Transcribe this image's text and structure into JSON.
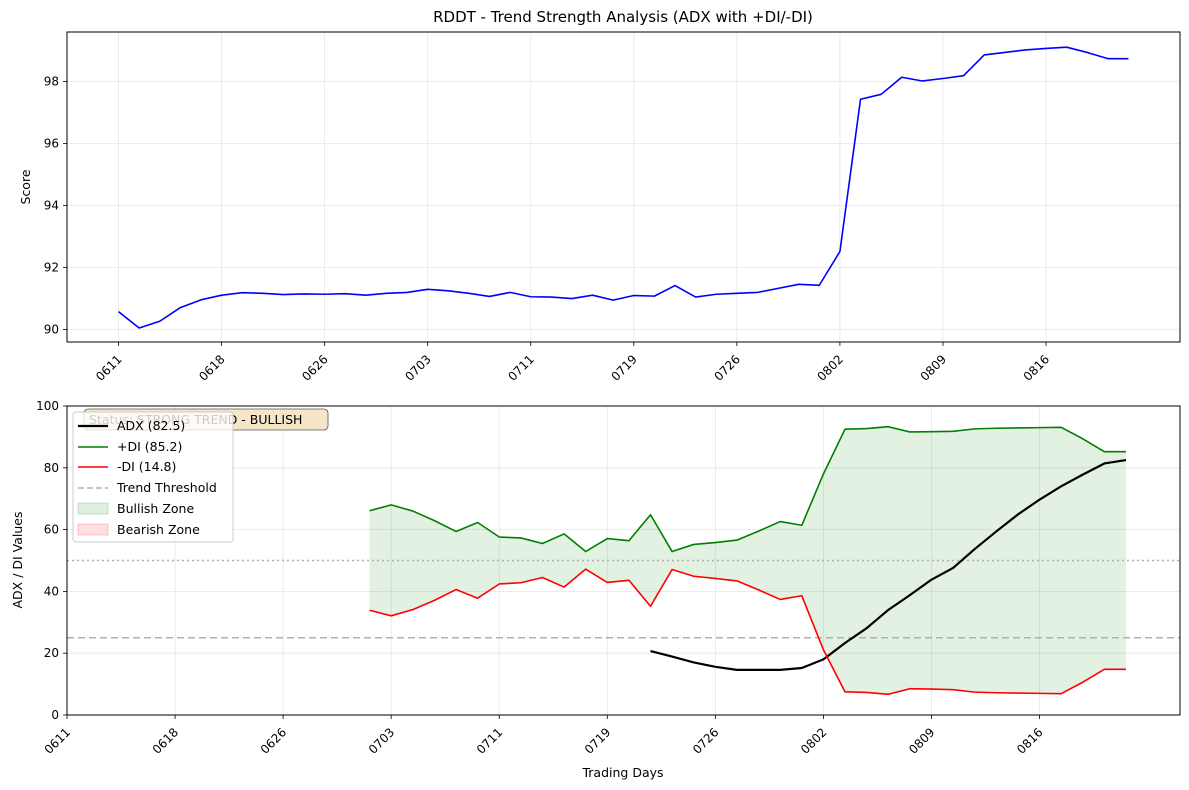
{
  "chart_data": [
    {
      "type": "line",
      "title": "RDDT - Trend Strength Analysis (ADX with +DI/-DI)",
      "xlabel": "",
      "ylabel": "Score",
      "ylim": [
        89.6,
        99.6
      ],
      "yticks": [
        90,
        92,
        94,
        96,
        98
      ],
      "xtick_labels": [
        "0611",
        "0618",
        "0626",
        "0703",
        "0711",
        "0719",
        "0726",
        "0802",
        "0809",
        "0816"
      ],
      "xtick_positions": [
        0,
        5,
        10,
        15,
        20,
        25,
        30,
        35,
        40,
        45
      ],
      "xlim": [
        -2.5,
        51.5
      ],
      "grid": true,
      "series": [
        {
          "color": "#0000ff",
          "x": [
            0,
            1,
            2,
            3,
            4,
            5,
            6,
            7,
            8,
            9,
            10,
            11,
            12,
            13,
            14,
            15,
            16,
            17,
            18,
            19,
            20,
            21,
            22,
            23,
            24,
            25,
            26,
            27,
            28,
            29,
            30,
            31,
            32,
            33,
            34,
            35,
            36,
            37,
            38,
            39,
            40,
            41,
            42,
            43,
            44,
            45,
            46,
            47,
            48,
            49
          ],
          "values": [
            90.58,
            90.05,
            90.27,
            90.71,
            90.96,
            91.11,
            91.19,
            91.17,
            91.13,
            91.15,
            91.14,
            91.16,
            91.11,
            91.17,
            91.2,
            91.3,
            91.25,
            91.17,
            91.07,
            91.2,
            91.06,
            91.05,
            91.0,
            91.11,
            90.95,
            91.1,
            91.08,
            91.42,
            91.05,
            91.14,
            91.17,
            91.2,
            91.33,
            91.46,
            91.43,
            92.52,
            97.43,
            97.59,
            98.14,
            98.02,
            98.1,
            98.19,
            98.86,
            98.94,
            99.02,
            99.07,
            99.11,
            98.94,
            98.74,
            98.74
          ]
        }
      ]
    },
    {
      "type": "line",
      "title": "",
      "xlabel": "Trading Days",
      "ylabel": "ADX / DI Values",
      "ylim": [
        0,
        100
      ],
      "yticks": [
        0,
        20,
        40,
        60,
        80,
        100
      ],
      "xtick_labels": [
        "0611",
        "0618",
        "0626",
        "0703",
        "0711",
        "0719",
        "0726",
        "0802",
        "0809",
        "0816"
      ],
      "xtick_positions": [
        0,
        5,
        10,
        15,
        20,
        25,
        30,
        35,
        40,
        45
      ],
      "xlim": [
        0,
        51.5
      ],
      "grid": true,
      "status_box": "Status: STRONG TREND - BULLISH",
      "threshold_lines": [
        {
          "value": 25,
          "style": "dashed",
          "color": "#b0b0b0"
        },
        {
          "value": 50,
          "style": "dotted",
          "color": "#b0b0b0"
        }
      ],
      "series": [
        {
          "name": "ADX (82.5)",
          "color": "#000000",
          "x": [
            27,
            28,
            29,
            30,
            31,
            32,
            33,
            34,
            35,
            36,
            37,
            38,
            39,
            40,
            41,
            42,
            43,
            44,
            45,
            46,
            47,
            48,
            49
          ],
          "values": [
            20.7,
            18.9,
            17.0,
            15.6,
            14.6,
            14.6,
            14.6,
            15.2,
            18.0,
            23.3,
            28.1,
            34.0,
            38.8,
            43.8,
            47.6,
            53.7,
            59.4,
            64.9,
            69.7,
            74.0,
            77.8,
            81.4,
            82.5
          ]
        },
        {
          "name": "+DI (85.2)",
          "color": "#008000",
          "x": [
            14,
            15,
            16,
            17,
            18,
            19,
            20,
            21,
            22,
            23,
            24,
            25,
            26,
            27,
            28,
            29,
            30,
            31,
            32,
            33,
            34,
            35,
            36,
            37,
            38,
            39,
            40,
            41,
            42,
            43,
            44,
            45,
            46,
            47,
            48,
            49
          ],
          "values": [
            66.1,
            68.0,
            66.0,
            62.9,
            59.4,
            62.3,
            57.6,
            57.3,
            55.5,
            58.6,
            52.9,
            57.1,
            56.4,
            64.8,
            52.9,
            55.2,
            55.8,
            56.6,
            59.5,
            62.6,
            61.4,
            78.0,
            92.5,
            92.7,
            93.3,
            91.6,
            91.7,
            91.8,
            92.6,
            92.8,
            92.9,
            93.0,
            93.1,
            89.4,
            85.2,
            85.2
          ]
        },
        {
          "name": "-DI (14.8)",
          "color": "#ff0000",
          "x": [
            14,
            15,
            16,
            17,
            18,
            19,
            20,
            21,
            22,
            23,
            24,
            25,
            26,
            27,
            28,
            29,
            30,
            31,
            32,
            33,
            34,
            35,
            36,
            37,
            38,
            39,
            40,
            41,
            42,
            43,
            44,
            45,
            46,
            47,
            48,
            49
          ],
          "values": [
            33.9,
            32.1,
            34.1,
            37.1,
            40.6,
            37.8,
            42.4,
            42.8,
            44.5,
            41.4,
            47.2,
            42.9,
            43.6,
            35.2,
            47.1,
            44.9,
            44.2,
            43.4,
            40.5,
            37.4,
            38.6,
            21.1,
            7.5,
            7.3,
            6.7,
            8.5,
            8.4,
            8.2,
            7.4,
            7.2,
            7.1,
            7.0,
            6.9,
            10.6,
            14.8,
            14.8
          ]
        }
      ],
      "legend": {
        "placement": "upper-left",
        "entries": [
          "ADX (82.5)",
          "+DI (85.2)",
          "-DI (14.8)",
          "Trend Threshold",
          "Bullish Zone",
          "Bearish Zone"
        ]
      },
      "zones": {
        "bullish_color": "#008000",
        "bearish_color": "#ff0000"
      }
    }
  ]
}
